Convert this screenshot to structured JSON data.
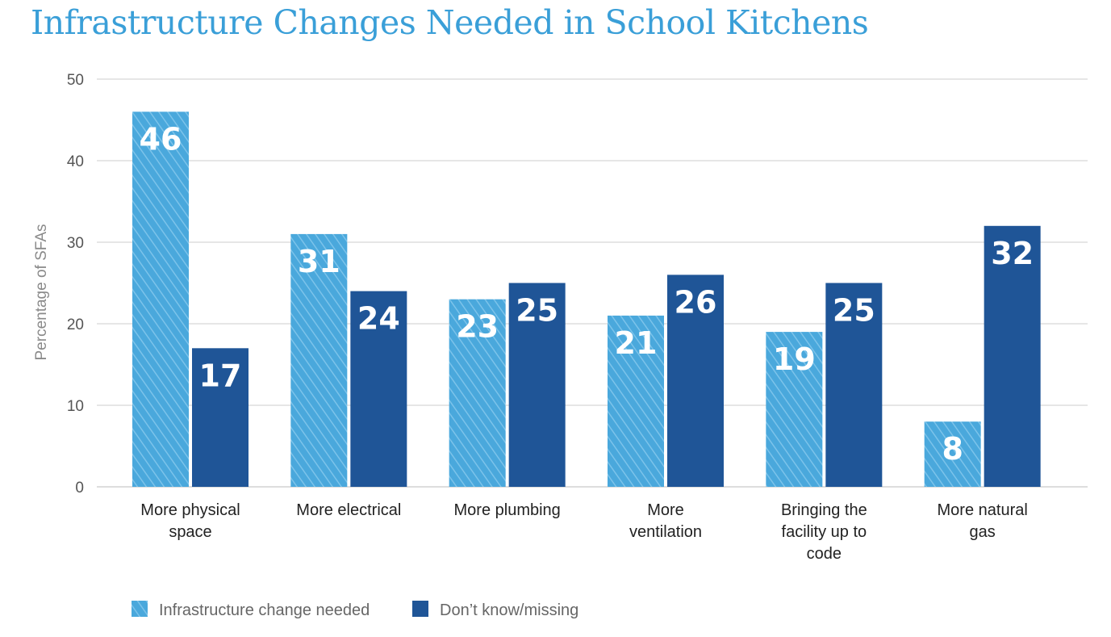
{
  "chart_data": {
    "type": "bar",
    "title": "Infrastructure Changes Needed in School Kitchens",
    "ylabel": "Percentage of SFAs",
    "xlabel": "",
    "ylim": [
      0,
      50
    ],
    "yticks": [
      0,
      10,
      20,
      30,
      40,
      50
    ],
    "grid": true,
    "legend_position": "bottom-left",
    "categories": [
      [
        "More physical",
        "space"
      ],
      [
        "More electrical"
      ],
      [
        "More plumbing"
      ],
      [
        "More",
        "ventilation"
      ],
      [
        "Bringing the",
        "facility up to",
        "code"
      ],
      [
        "More natural",
        "gas"
      ]
    ],
    "series": [
      {
        "name": "Infrastructure change needed",
        "color": "#4aa8dc",
        "pattern": "diagonal-hatch",
        "values": [
          46,
          31,
          23,
          21,
          19,
          8
        ]
      },
      {
        "name": "Don’t know/missing",
        "color": "#1f5597",
        "pattern": "solid",
        "values": [
          17,
          24,
          25,
          26,
          25,
          32
        ]
      }
    ]
  }
}
